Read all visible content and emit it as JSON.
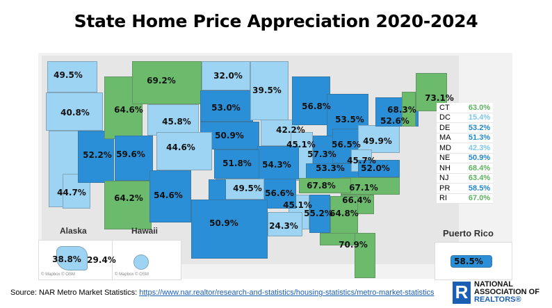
{
  "title": "State Home Price Appreciation 2020-2024",
  "colors": {
    "low": "#9dd3f3",
    "mid": "#2a8fd6",
    "high": "#6cbb6c",
    "land": "#e6e6e6"
  },
  "map_labels": [
    {
      "value": "49.5%",
      "tier": "low"
    },
    {
      "value": "40.8%",
      "tier": "low"
    },
    {
      "value": "44.7%",
      "tier": "low"
    },
    {
      "value": "52.2%",
      "tier": "mid"
    },
    {
      "value": "64.6%",
      "tier": "high"
    },
    {
      "value": "69.2%",
      "tier": "high"
    },
    {
      "value": "45.8%",
      "tier": "low"
    },
    {
      "value": "32.0%",
      "tier": "low"
    },
    {
      "value": "53.0%",
      "tier": "mid"
    },
    {
      "value": "50.9%",
      "tier": "mid"
    },
    {
      "value": "39.5%",
      "tier": "low"
    },
    {
      "value": "42.2%",
      "tier": "low"
    },
    {
      "value": "56.8%",
      "tier": "mid"
    },
    {
      "value": "53.5%",
      "tier": "mid"
    },
    {
      "value": "45.1%",
      "tier": "low"
    },
    {
      "value": "57.3%",
      "tier": "mid"
    },
    {
      "value": "56.5%",
      "tier": "mid"
    },
    {
      "value": "53.3%",
      "tier": "mid"
    },
    {
      "value": "49.9%",
      "tier": "low"
    },
    {
      "value": "52.6%",
      "tier": "mid"
    },
    {
      "value": "68.3%",
      "tier": "high"
    },
    {
      "value": "73.1%",
      "tier": "high"
    },
    {
      "value": "45.7%",
      "tier": "low"
    },
    {
      "value": "52.0%",
      "tier": "mid"
    },
    {
      "value": "67.1%",
      "tier": "high"
    },
    {
      "value": "67.8%",
      "tier": "high"
    },
    {
      "value": "66.4%",
      "tier": "high"
    },
    {
      "value": "64.8%",
      "tier": "high"
    },
    {
      "value": "55.2%",
      "tier": "mid"
    },
    {
      "value": "45.1%",
      "tier": "low"
    },
    {
      "value": "70.9%",
      "tier": "high"
    },
    {
      "value": "24.3%",
      "tier": "low"
    },
    {
      "value": "56.6%",
      "tier": "mid"
    },
    {
      "value": "54.3%",
      "tier": "mid"
    },
    {
      "value": "51.8%",
      "tier": "mid"
    },
    {
      "value": "49.5%",
      "tier": "low"
    },
    {
      "value": "50.9%",
      "tier": "mid"
    },
    {
      "value": "44.6%",
      "tier": "low"
    },
    {
      "value": "59.6%",
      "tier": "mid"
    },
    {
      "value": "64.2%",
      "tier": "high"
    },
    {
      "value": "54.6%",
      "tier": "mid"
    }
  ],
  "insets": {
    "alaska": {
      "title": "Alaska",
      "value": "38.8%",
      "tier": "low",
      "credit": "© Mapbox © OSM"
    },
    "hawaii": {
      "title": "Hawaii",
      "value": "29.4%",
      "tier": "low",
      "credit": "© Mapbox © OSM"
    },
    "puerto_rico": {
      "title": "Puerto Rico",
      "value": "58.5%",
      "tier": "mid"
    }
  },
  "small_states_table": [
    {
      "state": "CT",
      "value": "63.0%",
      "tier": "high"
    },
    {
      "state": "DC",
      "value": "15.4%",
      "tier": "low"
    },
    {
      "state": "DE",
      "value": "53.2%",
      "tier": "mid"
    },
    {
      "state": "MA",
      "value": "51.3%",
      "tier": "mid"
    },
    {
      "state": "MD",
      "value": "42.3%",
      "tier": "low"
    },
    {
      "state": "NE",
      "value": "50.9%",
      "tier": "mid"
    },
    {
      "state": "NH",
      "value": "68.4%",
      "tier": "high"
    },
    {
      "state": "NJ",
      "value": "63.4%",
      "tier": "high"
    },
    {
      "state": "PR",
      "value": "58.5%",
      "tier": "mid"
    },
    {
      "state": "RI",
      "value": "67.0%",
      "tier": "high"
    }
  ],
  "source": {
    "prefix": "Source: NAR Metro Market Statistics: ",
    "link": "https://www.nar.realtor/research-and-statistics/housing-statistics/metro-market-statistics"
  },
  "logo": {
    "mark": "R",
    "line1": "NATIONAL",
    "line2": "ASSOCIATION OF",
    "line3": "REALTORS®"
  }
}
